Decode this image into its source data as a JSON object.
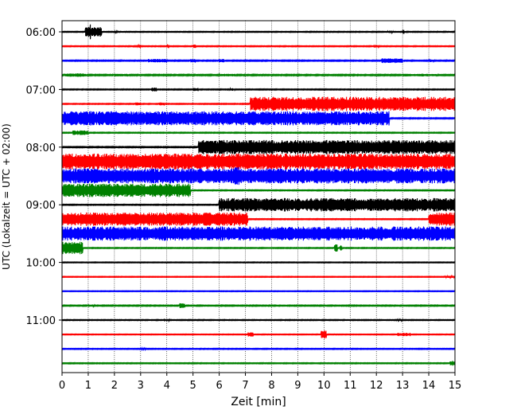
{
  "chart_data": {
    "type": "line",
    "title": "",
    "xlabel": "Zeit  [min]",
    "ylabel": "UTC (Lokalzeit = UTC + 02:00)",
    "xlim": [
      0,
      15
    ],
    "x_ticks": [
      "0",
      "1",
      "2",
      "3",
      "4",
      "5",
      "6",
      "7",
      "8",
      "9",
      "10",
      "11",
      "12",
      "13",
      "14",
      "15"
    ],
    "y_ticks": [
      "06:00",
      "07:00",
      "08:00",
      "09:00",
      "10:00",
      "11:00"
    ],
    "grid": "vertical dotted",
    "legend": "none",
    "trace_interval_min": 15,
    "colors": [
      "#000000",
      "#ff0000",
      "#0000ff",
      "#008000"
    ],
    "traces": [
      {
        "start": "06:00",
        "color": "#000000",
        "base": 0.05,
        "bursts": [
          [
            0.9,
            1.5,
            0.6
          ],
          [
            1.0,
            1.1,
            0.9
          ],
          [
            2.0,
            2.1,
            0.12
          ],
          [
            12.4,
            12.6,
            0.15
          ],
          [
            13.0,
            13.05,
            0.35
          ]
        ]
      },
      {
        "start": "06:15",
        "color": "#ff0000",
        "base": 0.05,
        "bursts": [
          [
            2.9,
            3.0,
            0.18
          ],
          [
            4.0,
            4.1,
            0.2
          ],
          [
            5.0,
            5.1,
            0.2
          ],
          [
            11.9,
            12.1,
            0.15
          ]
        ]
      },
      {
        "start": "06:30",
        "color": "#0000ff",
        "base": 0.06,
        "bursts": [
          [
            3.3,
            4.0,
            0.2
          ],
          [
            4.9,
            5.1,
            0.2
          ],
          [
            6.0,
            6.2,
            0.2
          ],
          [
            12.2,
            13.0,
            0.28
          ],
          [
            14.0,
            14.2,
            0.15
          ]
        ]
      },
      {
        "start": "06:45",
        "color": "#008000",
        "base": 0.07,
        "bursts": [
          [
            0.1,
            0.9,
            0.2
          ],
          [
            2.0,
            2.5,
            0.15
          ],
          [
            6.0,
            6.6,
            0.15
          ],
          [
            13.0,
            14.3,
            0.15
          ]
        ]
      },
      {
        "start": "07:00",
        "color": "#000000",
        "base": 0.05,
        "bursts": [
          [
            3.4,
            3.6,
            0.22
          ],
          [
            5.0,
            5.2,
            0.18
          ],
          [
            6.4,
            6.6,
            0.15
          ]
        ]
      },
      {
        "start": "07:15",
        "color": "#ff0000",
        "base": 0.05,
        "bursts": [
          [
            2.8,
            3.0,
            0.22
          ],
          [
            3.7,
            3.9,
            0.18
          ],
          [
            7.2,
            15.0,
            0.85
          ]
        ]
      },
      {
        "start": "07:30",
        "color": "#0000ff",
        "base": 0.06,
        "bursts": [
          [
            0.0,
            12.5,
            0.85
          ]
        ]
      },
      {
        "start": "07:45",
        "color": "#008000",
        "base": 0.05,
        "bursts": [
          [
            0.4,
            1.0,
            0.28
          ]
        ]
      },
      {
        "start": "08:00",
        "color": "#000000",
        "base": 0.06,
        "bursts": [
          [
            5.2,
            15.0,
            0.85
          ]
        ]
      },
      {
        "start": "08:15",
        "color": "#ff0000",
        "base": 0.95,
        "bursts": []
      },
      {
        "start": "08:30",
        "color": "#0000ff",
        "base": 0.9,
        "bursts": [
          [
            6.6,
            6.8,
            1.1
          ]
        ]
      },
      {
        "start": "08:45",
        "color": "#008000",
        "base": 0.05,
        "bursts": [
          [
            0.0,
            4.9,
            0.8
          ]
        ]
      },
      {
        "start": "09:00",
        "color": "#000000",
        "base": 0.05,
        "bursts": [
          [
            6.0,
            15.0,
            0.8
          ]
        ]
      },
      {
        "start": "09:15",
        "color": "#ff0000",
        "base": 0.05,
        "bursts": [
          [
            0.0,
            7.1,
            0.8
          ],
          [
            14.0,
            15.0,
            0.8
          ]
        ]
      },
      {
        "start": "09:30",
        "color": "#0000ff",
        "base": 0.85,
        "bursts": []
      },
      {
        "start": "09:45",
        "color": "#008000",
        "base": 0.05,
        "bursts": [
          [
            0.0,
            0.8,
            0.75
          ],
          [
            10.4,
            10.5,
            0.5
          ],
          [
            10.6,
            10.7,
            0.35
          ]
        ]
      },
      {
        "start": "10:00",
        "color": "#000000",
        "base": 0.04,
        "bursts": []
      },
      {
        "start": "10:15",
        "color": "#ff0000",
        "base": 0.04,
        "bursts": [
          [
            14.6,
            15.0,
            0.12
          ]
        ]
      },
      {
        "start": "10:30",
        "color": "#0000ff",
        "base": 0.04,
        "bursts": []
      },
      {
        "start": "10:45",
        "color": "#008000",
        "base": 0.06,
        "bursts": [
          [
            4.5,
            4.7,
            0.3
          ],
          [
            1.0,
            1.2,
            0.15
          ]
        ]
      },
      {
        "start": "11:00",
        "color": "#000000",
        "base": 0.05,
        "bursts": [
          [
            3.9,
            4.1,
            0.15
          ],
          [
            12.8,
            13.0,
            0.12
          ]
        ]
      },
      {
        "start": "11:15",
        "color": "#ff0000",
        "base": 0.04,
        "bursts": [
          [
            7.1,
            7.3,
            0.25
          ],
          [
            9.9,
            10.1,
            0.5
          ],
          [
            12.8,
            13.3,
            0.2
          ]
        ]
      },
      {
        "start": "11:30",
        "color": "#0000ff",
        "base": 0.05,
        "bursts": [
          [
            3.0,
            3.2,
            0.12
          ]
        ]
      },
      {
        "start": "11:45",
        "color": "#008000",
        "base": 0.05,
        "bursts": [
          [
            14.8,
            15.0,
            0.3
          ]
        ]
      }
    ]
  }
}
